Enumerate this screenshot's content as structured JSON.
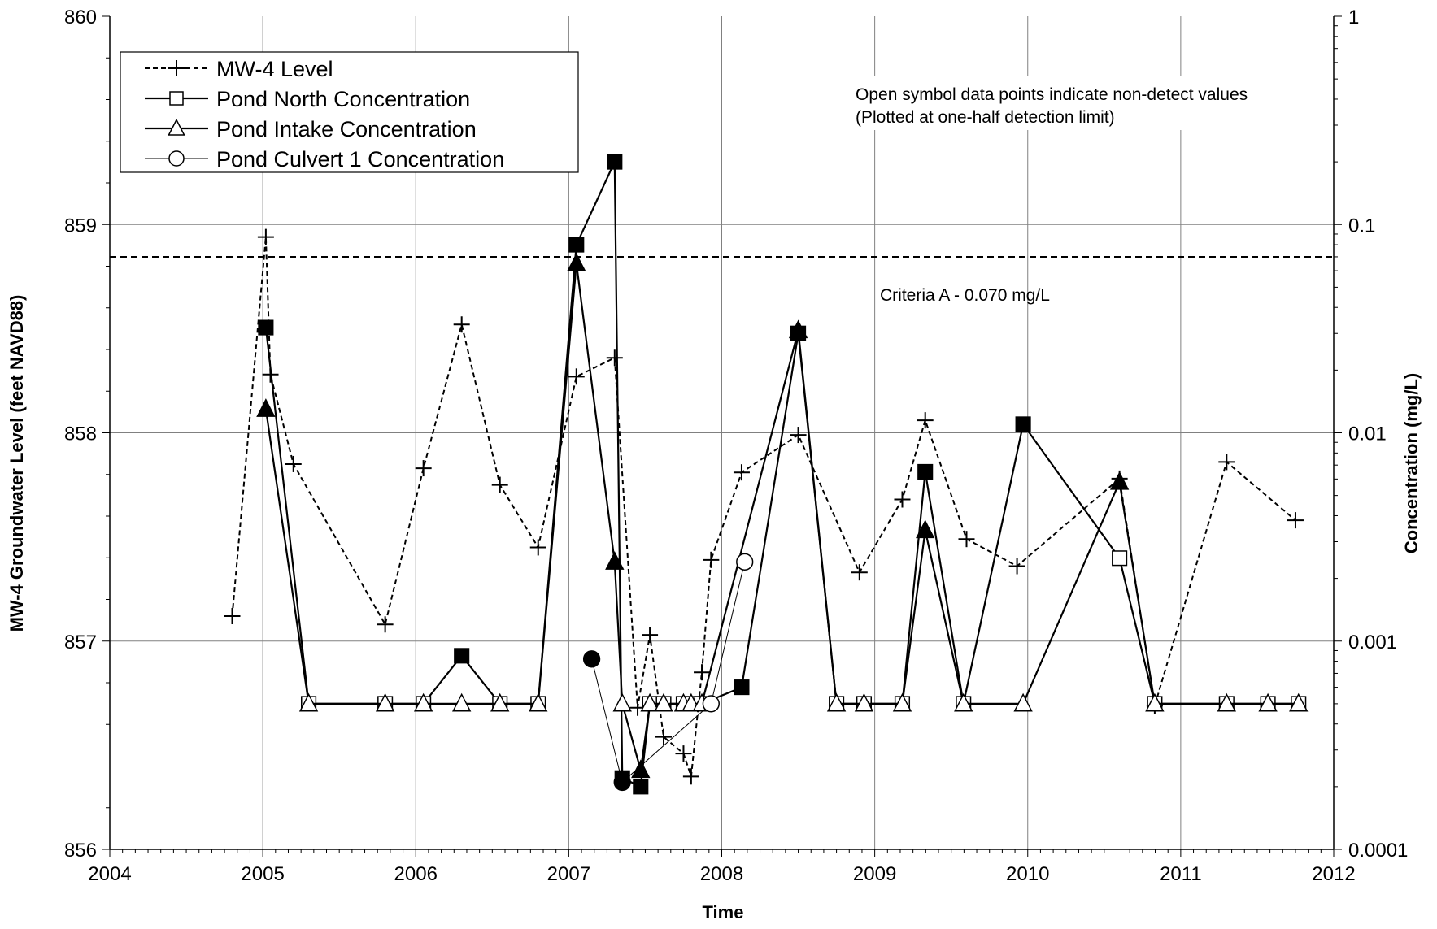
{
  "chart_data": {
    "type": "line",
    "xlabel": "Time",
    "ylabel_left": "MW-4 Groundwater Level (feet NAVD88)",
    "ylabel_right": "Concentration (mg/L)",
    "x_range": [
      2004,
      2012
    ],
    "x_ticks": [
      "2004",
      "2005",
      "2006",
      "2007",
      "2008",
      "2009",
      "2010",
      "2011",
      "2012"
    ],
    "y_left_range": [
      856,
      860
    ],
    "y_left_ticks": [
      "856",
      "857",
      "858",
      "859",
      "860"
    ],
    "y_right_range": [
      0.0001,
      1
    ],
    "y_right_scale": "log",
    "y_right_ticks": [
      "0.0001",
      "0.001",
      "0.01",
      "0.1",
      "1"
    ],
    "grid": true,
    "legend_position": "top-left",
    "annotation": {
      "line1": "Open symbol data points indicate non-detect values",
      "line2": "(Plotted at one-half detection limit)"
    },
    "criteria": {
      "label": "Criteria A - 0.070 mg/L",
      "value": 0.07
    },
    "series": [
      {
        "name": "MW-4 Level",
        "axis": "left",
        "style": "dashed",
        "marker": "plus",
        "points": [
          [
            2004.8,
            857.12
          ],
          [
            2005.02,
            858.94
          ],
          [
            2005.05,
            858.28
          ],
          [
            2005.2,
            857.85
          ],
          [
            2005.8,
            857.08
          ],
          [
            2006.05,
            857.83
          ],
          [
            2006.3,
            858.52
          ],
          [
            2006.55,
            857.75
          ],
          [
            2006.8,
            857.45
          ],
          [
            2007.05,
            858.27
          ],
          [
            2007.3,
            858.36
          ],
          [
            2007.45,
            856.68
          ],
          [
            2007.53,
            857.03
          ],
          [
            2007.62,
            856.54
          ],
          [
            2007.75,
            856.46
          ],
          [
            2007.8,
            856.35
          ],
          [
            2007.87,
            856.85
          ],
          [
            2007.93,
            857.39
          ],
          [
            2008.13,
            857.81
          ],
          [
            2008.5,
            857.99
          ],
          [
            2008.9,
            857.33
          ],
          [
            2009.18,
            857.68
          ],
          [
            2009.33,
            858.06
          ],
          [
            2009.6,
            857.49
          ],
          [
            2009.93,
            857.36
          ],
          [
            2010.6,
            857.78
          ],
          [
            2010.83,
            856.69
          ],
          [
            2011.3,
            857.86
          ],
          [
            2011.75,
            857.58
          ]
        ]
      },
      {
        "name": "Pond North Concentration",
        "axis": "right",
        "style": "solid",
        "marker": "square",
        "points": [
          {
            "x": 2005.02,
            "y": 0.032,
            "nd": false
          },
          {
            "x": 2005.3,
            "y": 0.0005,
            "nd": true
          },
          {
            "x": 2005.8,
            "y": 0.0005,
            "nd": true
          },
          {
            "x": 2006.05,
            "y": 0.0005,
            "nd": true
          },
          {
            "x": 2006.3,
            "y": 0.00085,
            "nd": false
          },
          {
            "x": 2006.55,
            "y": 0.0005,
            "nd": true
          },
          {
            "x": 2006.8,
            "y": 0.0005,
            "nd": true
          },
          {
            "x": 2007.05,
            "y": 0.08,
            "nd": false
          },
          {
            "x": 2007.3,
            "y": 0.2,
            "nd": false
          },
          {
            "x": 2007.35,
            "y": 0.00022,
            "nd": false
          },
          {
            "x": 2007.47,
            "y": 0.0002,
            "nd": false
          },
          {
            "x": 2007.53,
            "y": 0.0005,
            "nd": true
          },
          {
            "x": 2007.62,
            "y": 0.0005,
            "nd": true
          },
          {
            "x": 2007.75,
            "y": 0.0005,
            "nd": true
          },
          {
            "x": 2007.8,
            "y": 0.0005,
            "nd": true
          },
          {
            "x": 2007.87,
            "y": 0.0005,
            "nd": true
          },
          {
            "x": 2008.13,
            "y": 0.0006,
            "nd": false
          },
          {
            "x": 2008.5,
            "y": 0.03,
            "nd": false
          },
          {
            "x": 2008.75,
            "y": 0.0005,
            "nd": true
          },
          {
            "x": 2008.93,
            "y": 0.0005,
            "nd": true
          },
          {
            "x": 2009.18,
            "y": 0.0005,
            "nd": true
          },
          {
            "x": 2009.33,
            "y": 0.0065,
            "nd": false
          },
          {
            "x": 2009.58,
            "y": 0.0005,
            "nd": true
          },
          {
            "x": 2009.97,
            "y": 0.011,
            "nd": false
          },
          {
            "x": 2010.6,
            "y": 0.0025,
            "nd": true
          },
          {
            "x": 2010.83,
            "y": 0.0005,
            "nd": true
          },
          {
            "x": 2011.3,
            "y": 0.0005,
            "nd": true
          },
          {
            "x": 2011.57,
            "y": 0.0005,
            "nd": true
          },
          {
            "x": 2011.77,
            "y": 0.0005,
            "nd": true
          }
        ]
      },
      {
        "name": "Pond Intake Concentration",
        "axis": "right",
        "style": "solid",
        "marker": "triangle",
        "points": [
          {
            "x": 2005.02,
            "y": 0.013,
            "nd": false
          },
          {
            "x": 2005.3,
            "y": 0.0005,
            "nd": true
          },
          {
            "x": 2005.8,
            "y": 0.0005,
            "nd": true
          },
          {
            "x": 2006.05,
            "y": 0.0005,
            "nd": true
          },
          {
            "x": 2006.3,
            "y": 0.0005,
            "nd": true
          },
          {
            "x": 2006.55,
            "y": 0.0005,
            "nd": true
          },
          {
            "x": 2006.8,
            "y": 0.0005,
            "nd": true
          },
          {
            "x": 2007.05,
            "y": 0.065,
            "nd": false
          },
          {
            "x": 2007.3,
            "y": 0.0024,
            "nd": false
          },
          {
            "x": 2007.35,
            "y": 0.0005,
            "nd": true
          },
          {
            "x": 2007.47,
            "y": 0.00024,
            "nd": false
          },
          {
            "x": 2007.53,
            "y": 0.0005,
            "nd": true
          },
          {
            "x": 2007.62,
            "y": 0.0005,
            "nd": true
          },
          {
            "x": 2007.75,
            "y": 0.0005,
            "nd": true
          },
          {
            "x": 2007.8,
            "y": 0.0005,
            "nd": true
          },
          {
            "x": 2007.87,
            "y": 0.0005,
            "nd": true
          },
          {
            "x": 2008.5,
            "y": 0.031,
            "nd": false
          },
          {
            "x": 2008.75,
            "y": 0.0005,
            "nd": true
          },
          {
            "x": 2008.93,
            "y": 0.0005,
            "nd": true
          },
          {
            "x": 2009.18,
            "y": 0.0005,
            "nd": true
          },
          {
            "x": 2009.33,
            "y": 0.0034,
            "nd": false
          },
          {
            "x": 2009.58,
            "y": 0.0005,
            "nd": true
          },
          {
            "x": 2009.97,
            "y": 0.0005,
            "nd": true
          },
          {
            "x": 2010.6,
            "y": 0.0058,
            "nd": false
          },
          {
            "x": 2010.83,
            "y": 0.0005,
            "nd": true
          },
          {
            "x": 2011.3,
            "y": 0.0005,
            "nd": true
          },
          {
            "x": 2011.57,
            "y": 0.0005,
            "nd": true
          },
          {
            "x": 2011.77,
            "y": 0.0005,
            "nd": true
          }
        ]
      },
      {
        "name": "Pond Culvert 1 Concentration",
        "axis": "right",
        "style": "thin",
        "marker": "circle",
        "points": [
          {
            "x": 2007.15,
            "y": 0.00082,
            "nd": false
          },
          {
            "x": 2007.35,
            "y": 0.00021,
            "nd": false
          },
          {
            "x": 2007.93,
            "y": 0.0005,
            "nd": true
          },
          {
            "x": 2008.15,
            "y": 0.0024,
            "nd": true
          }
        ]
      }
    ]
  }
}
